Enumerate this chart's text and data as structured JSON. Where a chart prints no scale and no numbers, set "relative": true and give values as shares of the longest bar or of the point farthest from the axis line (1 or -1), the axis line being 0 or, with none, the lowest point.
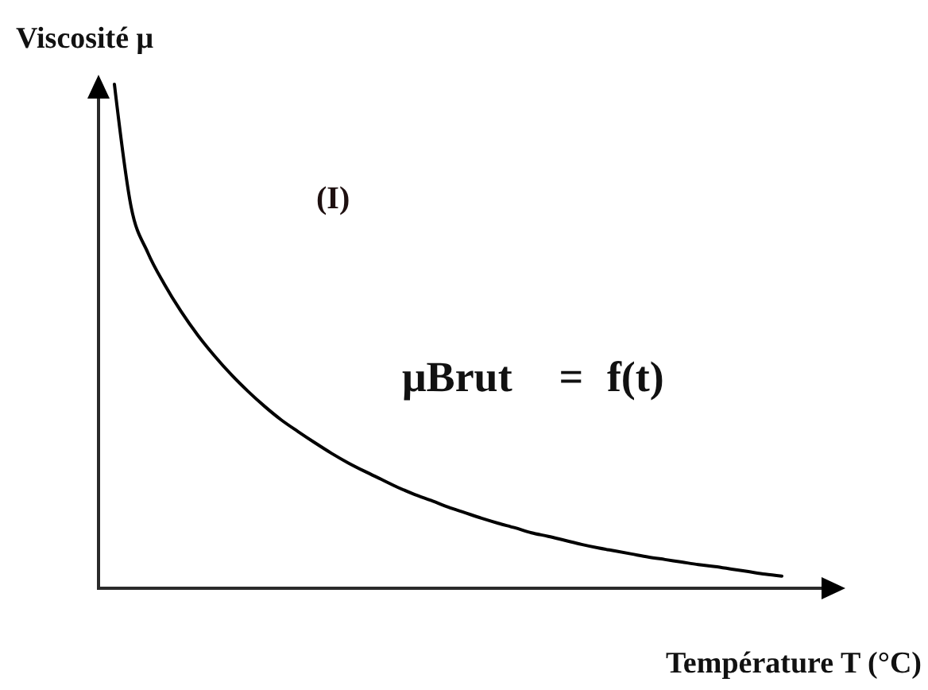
{
  "chart_data": {
    "type": "line",
    "xlabel": "Température T (°C)",
    "ylabel": "Viscosité μ",
    "annotations": [
      "(I)",
      "μBrut  = f(t)"
    ],
    "categories": [
      null,
      null,
      null,
      null,
      null,
      null,
      null,
      null,
      null,
      null,
      null,
      null,
      null,
      null,
      null,
      null,
      null,
      null,
      null,
      null,
      null,
      null,
      null,
      null,
      null,
      null,
      null,
      null,
      null,
      null,
      null,
      null,
      null,
      null,
      null,
      null,
      null,
      null,
      null,
      null,
      null
    ],
    "values": [
      1,
      0.757,
      0.666,
      0.603,
      0.549,
      0.502,
      0.461,
      0.424,
      0.391,
      0.361,
      0.334,
      0.311,
      0.289,
      0.268,
      0.249,
      0.232,
      0.216,
      0.2,
      0.186,
      0.174,
      0.161,
      0.15,
      0.139,
      0.129,
      0.12,
      0.11,
      0.103,
      0.095,
      0.087,
      0.08,
      0.074,
      0.068,
      0.062,
      0.057,
      0.052,
      0.047,
      0.043,
      0.038,
      0.033,
      0.028,
      0.024
    ],
    "color": "#000000",
    "relative": true
  }
}
